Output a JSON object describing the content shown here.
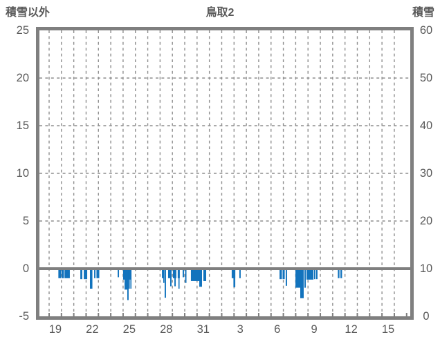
{
  "header": {
    "left_label": "積雪以外",
    "title": "鳥取2",
    "right_label": "積雪"
  },
  "colors": {
    "bar": "#1273bd",
    "frame": "#7f7f7f",
    "grid": "#8e8e8e",
    "text": "#595959"
  },
  "chart_data": {
    "type": "bar",
    "title": "鳥取2",
    "left_axis": {
      "label": "積雪以外",
      "ticks": [
        25,
        20,
        15,
        10,
        5,
        0,
        -5
      ],
      "min": -5,
      "max": 25
    },
    "right_axis": {
      "label": "積雪",
      "ticks": [
        60,
        50,
        40,
        30,
        20,
        10,
        0
      ],
      "min": 0,
      "max": 60
    },
    "x_axis": {
      "labels": [
        "19",
        "22",
        "25",
        "28",
        "31",
        "3",
        "6",
        "9",
        "12",
        "15"
      ],
      "label_interval_days": 3,
      "first_label_day_offset": 0.5,
      "gridline_every_days": 1,
      "gridline_count": 29
    },
    "grid": true,
    "legend": "none",
    "series": [
      {
        "name": "積雪以外",
        "axis": "left",
        "color": "#1273bd",
        "bars": [
          {
            "t": 0.75,
            "d": 0.22,
            "v": -1.0
          },
          {
            "t": 1.01,
            "d": 0.19,
            "v": -1.0
          },
          {
            "t": 1.25,
            "d": 0.43,
            "v": -1.0
          },
          {
            "t": 2.53,
            "d": 0.16,
            "v": -1.1
          },
          {
            "t": 2.81,
            "d": 0.28,
            "v": -1.1
          },
          {
            "t": 3.31,
            "d": 0.2,
            "v": -2.1
          },
          {
            "t": 3.65,
            "d": 0.11,
            "v": -1.0
          },
          {
            "t": 3.84,
            "d": 0.23,
            "v": -1.0
          },
          {
            "t": 5.56,
            "d": 0.11,
            "v": -0.9
          },
          {
            "t": 6.0,
            "d": 0.68,
            "v": -1.15
          },
          {
            "t": 6.12,
            "d": 0.22,
            "v": -2.2
          },
          {
            "t": 6.34,
            "d": 0.11,
            "v": -3.3
          },
          {
            "t": 6.45,
            "d": 0.09,
            "v": -2.1
          },
          {
            "t": 6.59,
            "d": 0.09,
            "v": -2.1
          },
          {
            "t": 9.15,
            "d": 0.19,
            "v": -1.0
          },
          {
            "t": 9.26,
            "d": 0.08,
            "v": -1.5
          },
          {
            "t": 9.37,
            "d": 0.11,
            "v": -3.05
          },
          {
            "t": 9.65,
            "d": 0.28,
            "v": -1.0
          },
          {
            "t": 9.82,
            "d": 0.11,
            "v": -1.85
          },
          {
            "t": 10.04,
            "d": 0.28,
            "v": -1.0
          },
          {
            "t": 10.16,
            "d": 0.11,
            "v": -1.85
          },
          {
            "t": 10.43,
            "d": 0.17,
            "v": -1.0
          },
          {
            "t": 10.49,
            "d": 0.08,
            "v": -2.1
          },
          {
            "t": 10.83,
            "d": 0.11,
            "v": -0.9
          },
          {
            "t": 11.03,
            "d": 0.11,
            "v": -1.5
          },
          {
            "t": 11.5,
            "d": 0.9,
            "v": -1.3
          },
          {
            "t": 12.18,
            "d": 0.22,
            "v": -1.9
          },
          {
            "t": 12.51,
            "d": 0.23,
            "v": -1.3
          },
          {
            "t": 14.81,
            "d": 0.29,
            "v": -1.0
          },
          {
            "t": 14.95,
            "d": 0.15,
            "v": -1.95
          },
          {
            "t": 15.43,
            "d": 0.11,
            "v": -1.0
          },
          {
            "t": 18.69,
            "d": 0.19,
            "v": -1.1
          },
          {
            "t": 18.94,
            "d": 0.17,
            "v": -1.1
          },
          {
            "t": 19.19,
            "d": 0.11,
            "v": -1.8
          },
          {
            "t": 19.98,
            "d": 0.56,
            "v": -2.0
          },
          {
            "t": 20.37,
            "d": 0.28,
            "v": -3.1
          },
          {
            "t": 20.71,
            "d": 0.11,
            "v": -2.0
          },
          {
            "t": 20.88,
            "d": 0.56,
            "v": -1.15
          },
          {
            "t": 21.49,
            "d": 0.11,
            "v": -1.1
          },
          {
            "t": 21.66,
            "d": 0.11,
            "v": -1.1
          },
          {
            "t": 23.42,
            "d": 0.13,
            "v": -1.0
          },
          {
            "t": 23.63,
            "d": 0.13,
            "v": -1.0
          }
        ]
      }
    ]
  }
}
